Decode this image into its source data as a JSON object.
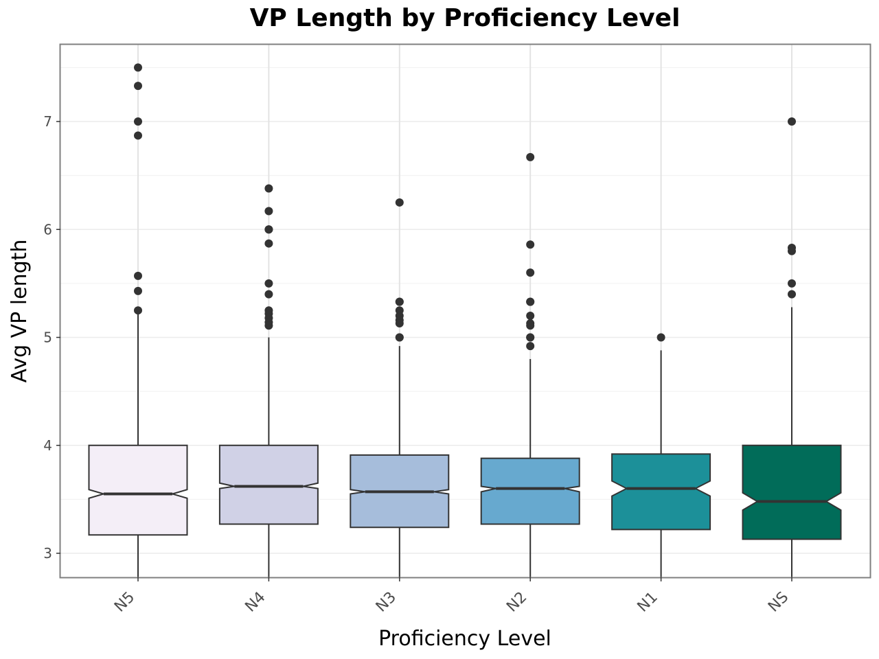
{
  "chart_data": {
    "type": "boxplot",
    "title": "VP Length by Proficiency Level",
    "xlabel": "Proficiency Level",
    "ylabel": "Avg VP length",
    "ylim": [
      2.75,
      7.7
    ],
    "y_ticks": [
      "3",
      "4",
      "5",
      "6",
      "7"
    ],
    "grid": true,
    "notched": true,
    "categories": [
      "N5",
      "N4",
      "N3",
      "N2",
      "N1",
      "NS"
    ],
    "boxes": [
      {
        "label": "N5",
        "fill": "#f4eef7",
        "q1": 3.17,
        "median": 3.55,
        "q3": 4.0,
        "notch_lo": 3.51,
        "notch_hi": 3.59,
        "whisker_low": 2.75,
        "whisker_high": 5.22,
        "outliers": [
          7.5,
          7.33,
          7.0,
          6.87,
          5.57,
          5.43,
          5.25
        ]
      },
      {
        "label": "N4",
        "fill": "#d0d1e6",
        "q1": 3.27,
        "median": 3.62,
        "q3": 4.0,
        "notch_lo": 3.6,
        "notch_hi": 3.65,
        "whisker_low": 2.75,
        "whisker_high": 5.0,
        "outliers": [
          6.38,
          6.17,
          6.0,
          6.0,
          5.87,
          5.5,
          5.4,
          5.25,
          5.22,
          5.18,
          5.14,
          5.11
        ]
      },
      {
        "label": "N3",
        "fill": "#a6bddb",
        "q1": 3.24,
        "median": 3.57,
        "q3": 3.91,
        "notch_lo": 3.55,
        "notch_hi": 3.59,
        "whisker_low": 2.75,
        "whisker_high": 4.92,
        "outliers": [
          6.25,
          5.33,
          5.33,
          5.25,
          5.2,
          5.16,
          5.13,
          5.0,
          5.0
        ]
      },
      {
        "label": "N2",
        "fill": "#67a9cf",
        "q1": 3.27,
        "median": 3.6,
        "q3": 3.88,
        "notch_lo": 3.57,
        "notch_hi": 3.62,
        "whisker_low": 2.75,
        "whisker_high": 4.8,
        "outliers": [
          6.67,
          5.86,
          5.6,
          5.33,
          5.33,
          5.2,
          5.13,
          5.11,
          5.0,
          5.0,
          4.92
        ]
      },
      {
        "label": "N1",
        "fill": "#1c9099",
        "q1": 3.22,
        "median": 3.6,
        "q3": 3.92,
        "notch_lo": 3.53,
        "notch_hi": 3.67,
        "whisker_low": 2.75,
        "whisker_high": 4.88,
        "outliers": [
          5.0
        ]
      },
      {
        "label": "NS",
        "fill": "#016c59",
        "q1": 3.13,
        "median": 3.48,
        "q3": 4.0,
        "notch_lo": 3.4,
        "notch_hi": 3.56,
        "whisker_low": 2.75,
        "whisker_high": 5.28,
        "outliers": [
          7.0,
          5.83,
          5.8,
          5.5,
          5.4
        ]
      }
    ]
  }
}
